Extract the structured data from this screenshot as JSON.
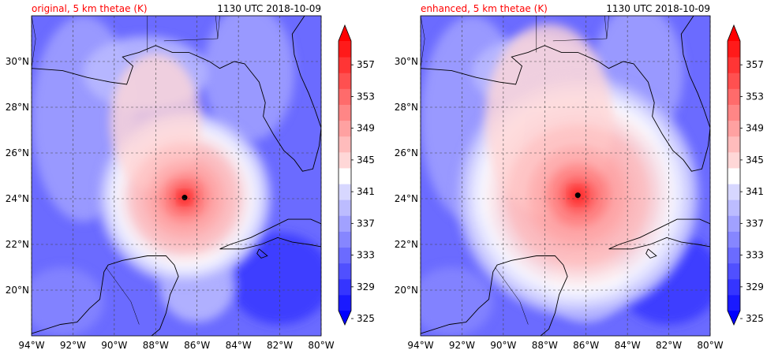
{
  "panels": [
    {
      "title_left": "original, 5 km thetae (K)",
      "title_right": "1130 UTC 2018-10-09",
      "eye": {
        "lon": -86.6,
        "lat": 24.05
      },
      "inner_radius_deg": 2.6,
      "outer_radius_deg": 4.0
    },
    {
      "title_left": "enhanced, 5 km thetae (K)",
      "title_right": "1130 UTC 2018-10-09",
      "eye": {
        "lon": -86.4,
        "lat": 24.15
      },
      "inner_radius_deg": 3.4,
      "outer_radius_deg": 5.6
    }
  ],
  "chart_data": {
    "type": "heatmap",
    "x_ticks": [
      "94°W",
      "92°W",
      "90°W",
      "88°W",
      "86°W",
      "84°W",
      "82°W",
      "80°W"
    ],
    "x_tick_values": [
      -94,
      -92,
      -90,
      -88,
      -86,
      -84,
      -82,
      -80
    ],
    "y_ticks": [
      "20°N",
      "22°N",
      "24°N",
      "26°N",
      "28°N",
      "30°N"
    ],
    "y_tick_values": [
      20,
      22,
      24,
      26,
      28,
      30
    ],
    "xlim": [
      -94,
      -80
    ],
    "ylim": [
      18,
      32
    ],
    "colorbar": {
      "levels": [
        325,
        327,
        329,
        331,
        333,
        335,
        337,
        339,
        341,
        343,
        345,
        347,
        349,
        351,
        353,
        355,
        357,
        359
      ],
      "labels": [
        "325",
        "329",
        "333",
        "337",
        "341",
        "345",
        "349",
        "353",
        "357"
      ],
      "label_values": [
        325,
        329,
        333,
        337,
        341,
        345,
        349,
        353,
        357
      ],
      "colors": [
        "#0000ff",
        "#1a1aff",
        "#3535ff",
        "#5050ff",
        "#6b6bff",
        "#8686ff",
        "#a1a1ff",
        "#bcbcff",
        "#d7d7ff",
        "#ffffff",
        "#ffd7d7",
        "#ffbcbc",
        "#ffa1a1",
        "#ff8686",
        "#ff6b6b",
        "#ff5050",
        "#ff3535",
        "#ff1a1a",
        "#ff0000"
      ],
      "extend": "both"
    }
  },
  "colors": {
    "title_left": "#ff0000",
    "title_right": "#000000",
    "grid": "#444444",
    "coast": "#000000"
  }
}
